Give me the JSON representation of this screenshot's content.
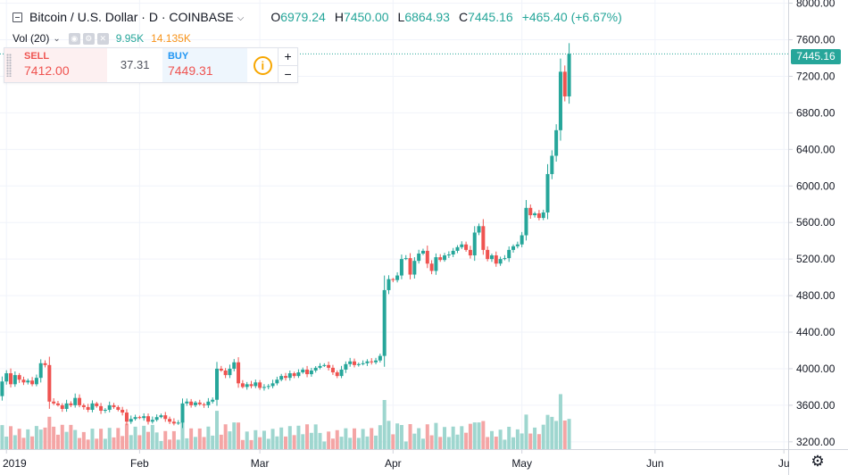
{
  "header": {
    "symbol": "Bitcoin / U.S. Dollar · D · COINBASE",
    "ohlc": [
      {
        "label": "O",
        "value": "6979.24"
      },
      {
        "label": "H",
        "value": "7450.00"
      },
      {
        "label": "L",
        "value": "6864.93"
      },
      {
        "label": "C",
        "value": "7445.16"
      }
    ],
    "change": "+465.40 (+6.67%)"
  },
  "volume_legend": {
    "label": "Vol (20)",
    "value_a": "9.95K",
    "value_b": "14.135K"
  },
  "trade_panel": {
    "sell_label": "SELL",
    "sell_price_main": "74",
    "sell_price_big": "12.00",
    "spread": "37.31",
    "buy_label": "BUY",
    "buy_price_main": "74",
    "buy_price_big": "49.31",
    "info_glyph": "i",
    "plus": "+",
    "minus": "−"
  },
  "last_price_tag": "7445.16",
  "colors": {
    "up": "#26a69a",
    "down": "#ef5350",
    "vol_up": "#9ed6cf",
    "vol_down": "#f4a5a5",
    "grid": "#f0f3fa",
    "axis_text": "#131722"
  },
  "chart_data": {
    "type": "candlestick",
    "title": "Bitcoin / U.S. Dollar · D · COINBASE",
    "y_axis": {
      "ticks": [
        3200,
        3600,
        4000,
        4400,
        4800,
        5200,
        5600,
        6000,
        6400,
        6800,
        7200,
        7600,
        8000
      ],
      "tick_labels": [
        "3200.00",
        "3600.00",
        "4000.00",
        "4400.00",
        "4800.00",
        "5200.00",
        "5600.00",
        "6000.00",
        "6400.00",
        "6800.00",
        "7200.00",
        "7600.00",
        "8000.00"
      ],
      "range": [
        3120,
        8035
      ]
    },
    "x_axis": {
      "labels": [
        {
          "text": "2019",
          "day": 1
        },
        {
          "text": "Feb",
          "day": 32
        },
        {
          "text": "Mar",
          "day": 60
        },
        {
          "text": "Apr",
          "day": 91
        },
        {
          "text": "May",
          "day": 121
        },
        {
          "text": "Jun",
          "day": 152
        },
        {
          "text": "Ju",
          "day": 182
        }
      ],
      "day_range": [
        -0.5,
        183
      ]
    },
    "close_series_start_day": -1,
    "start_open": 3850,
    "closes": [
      3700,
      3860,
      3950,
      3830,
      3930,
      3880,
      3850,
      3870,
      3830,
      3900,
      4060,
      4040,
      3640,
      3620,
      3600,
      3560,
      3620,
      3600,
      3680,
      3600,
      3580,
      3550,
      3620,
      3590,
      3540,
      3550,
      3600,
      3580,
      3550,
      3520,
      3420,
      3450,
      3470,
      3460,
      3480,
      3420,
      3440,
      3470,
      3490,
      3450,
      3420,
      3400,
      3410,
      3620,
      3640,
      3600,
      3630,
      3610,
      3600,
      3640,
      3660,
      4000,
      3980,
      3930,
      4000,
      4070,
      3840,
      3800,
      3830,
      3810,
      3850,
      3790,
      3800,
      3810,
      3840,
      3880,
      3920,
      3900,
      3950,
      3920,
      3960,
      3990,
      3940,
      3980,
      4010,
      4030,
      4040,
      4010,
      3960,
      3920,
      3990,
      4050,
      4080,
      4040,
      4050,
      4060,
      4080,
      4070,
      4090,
      4140,
      4860,
      4980,
      4970,
      5020,
      5200,
      5210,
      5030,
      5180,
      5260,
      5290,
      5150,
      5070,
      5220,
      5190,
      5240,
      5250,
      5290,
      5330,
      5360,
      5300,
      5240,
      5490,
      5560,
      5300,
      5200,
      5240,
      5150,
      5200,
      5210,
      5300,
      5340,
      5360,
      5460,
      5760,
      5680,
      5700,
      5650,
      5710,
      6130,
      6330,
      6610,
      7250,
      6980,
      7445
    ]
  }
}
